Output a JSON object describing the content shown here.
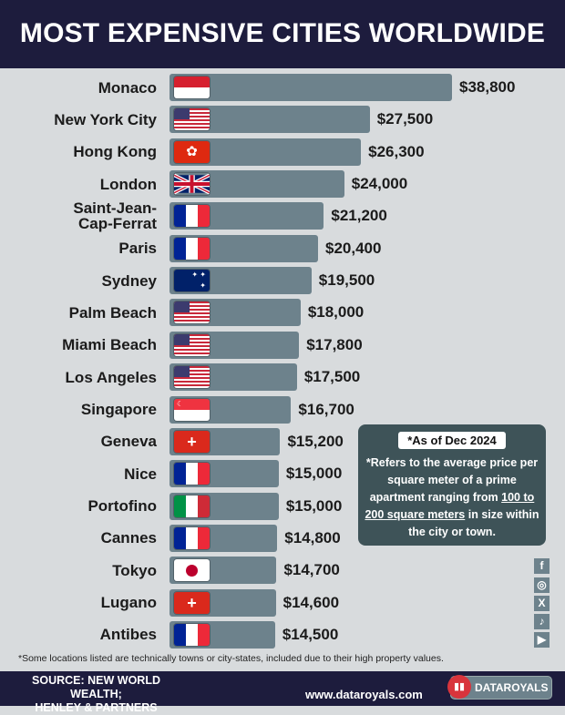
{
  "title": "MOST EXPENSIVE CITIES WORLDWIDE",
  "chart_data": {
    "type": "bar",
    "orientation": "horizontal",
    "title": "MOST EXPENSIVE CITIES WORLDWIDE",
    "categories": [
      "Monaco",
      "New York City",
      "Hong Kong",
      "London",
      "Saint-Jean-Cap-Ferrat",
      "Paris",
      "Sydney",
      "Palm Beach",
      "Miami Beach",
      "Los Angeles",
      "Singapore",
      "Geneva",
      "Nice",
      "Portofino",
      "Cannes",
      "Tokyo",
      "Lugano",
      "Antibes"
    ],
    "values": [
      38800,
      27500,
      26300,
      24000,
      21200,
      20400,
      19500,
      18000,
      17800,
      17500,
      16700,
      15200,
      15000,
      15000,
      14800,
      14700,
      14600,
      14500
    ],
    "value_labels": [
      "$38,800",
      "$27,500",
      "$26,300",
      "$24,000",
      "$21,200",
      "$20,400",
      "$19,500",
      "$18,000",
      "$17,800",
      "$17,500",
      "$16,700",
      "$15,200",
      "$15,000",
      "$15,000",
      "$14,800",
      "$14,700",
      "$14,600",
      "$14,500"
    ],
    "flags": [
      "monaco",
      "usa",
      "hong-kong",
      "uk",
      "france",
      "france",
      "australia",
      "usa",
      "usa",
      "usa",
      "singapore",
      "switzerland",
      "france",
      "italy",
      "france",
      "japan",
      "switzerland",
      "france"
    ],
    "bar_color": "#6d828c",
    "xlim": [
      0,
      38800
    ],
    "grid": false
  },
  "note": {
    "date": "*As of Dec 2024",
    "text_before": "*Refers to the average price per square meter of a prime apartment ranging from ",
    "text_underlined": "100 to 200 square meters",
    "text_after": " in size within the city or town."
  },
  "social_icons": [
    "facebook-icon",
    "instagram-icon",
    "x-icon",
    "tiktok-icon",
    "youtube-icon"
  ],
  "footnote": "*Some locations listed are technically towns or city-states, included due to their high property values.",
  "footer": {
    "source_line1": "SOURCE: NEW WORLD WEALTH;",
    "source_line2": "HENLEY & PARTNERS",
    "website": "www.dataroyals.com",
    "brand": "DATAROYALS"
  }
}
